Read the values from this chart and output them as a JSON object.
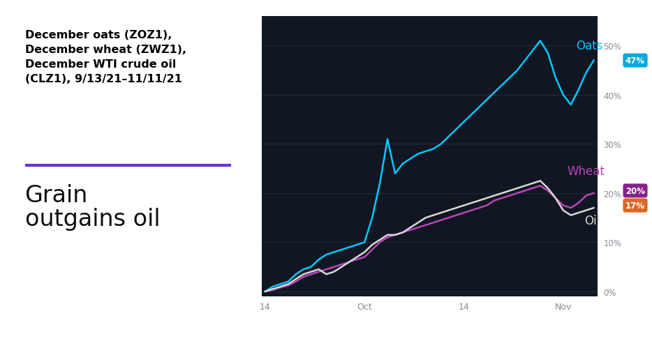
{
  "chart_bg": "#111722",
  "left_panel_bg": "#ffffff",
  "title_text": "December oats (ZOZ1),\nDecember wheat (ZWZ1),\nDecember WTI crude oil\n(CLZ1), 9/13/21–11/11/21",
  "subtitle_text": "Grain\noutgains oil",
  "purple_line_color": "#6633cc",
  "title_fontsize": 11.5,
  "subtitle_fontsize": 24,
  "oats_color": "#00c8ff",
  "wheat_color": "#bb44bb",
  "oil_color": "#d8d8d8",
  "oats_label": "Oats",
  "wheat_label": "Wheat",
  "oil_label": "Oil",
  "oats_pct": "47%",
  "wheat_pct": "20%",
  "oil_pct": "17%",
  "oats_badge_color": "#00aadd",
  "wheat_badge_color": "#882288",
  "oil_badge_color": "#dd6622",
  "ytick_labels": [
    "0%",
    "10%",
    "20%",
    "30%",
    "40%",
    "50%"
  ],
  "ytick_values": [
    0,
    10,
    20,
    30,
    40,
    50
  ],
  "xtick_labels": [
    "14",
    "Oct",
    "14",
    "Nov"
  ],
  "xtick_positions": [
    0,
    13,
    26,
    39
  ],
  "n_points": 44,
  "oats_data": [
    0.0,
    1.0,
    1.5,
    2.0,
    3.5,
    4.5,
    5.0,
    6.5,
    7.5,
    8.0,
    8.5,
    9.0,
    9.5,
    10.0,
    15.0,
    22.0,
    31.0,
    24.0,
    26.0,
    27.0,
    28.0,
    28.5,
    29.0,
    30.0,
    31.5,
    33.0,
    34.5,
    36.0,
    37.5,
    39.0,
    40.5,
    42.0,
    43.5,
    45.0,
    47.0,
    49.0,
    51.0,
    48.5,
    43.5,
    40.0,
    38.0,
    41.0,
    44.5,
    47.0
  ],
  "wheat_data": [
    0.0,
    0.3,
    0.8,
    1.2,
    2.0,
    3.0,
    3.5,
    4.0,
    4.5,
    5.0,
    5.5,
    6.0,
    6.5,
    7.0,
    8.5,
    10.0,
    11.0,
    11.5,
    12.0,
    12.5,
    13.0,
    13.5,
    14.0,
    14.5,
    15.0,
    15.5,
    16.0,
    16.5,
    17.0,
    17.5,
    18.5,
    19.0,
    19.5,
    20.0,
    20.5,
    21.0,
    21.5,
    20.5,
    19.0,
    17.5,
    17.0,
    18.0,
    19.5,
    20.0
  ],
  "oil_data": [
    0.0,
    0.5,
    1.0,
    1.5,
    2.5,
    3.5,
    4.0,
    4.5,
    3.5,
    4.0,
    5.0,
    6.0,
    7.0,
    8.0,
    9.5,
    10.5,
    11.5,
    11.5,
    12.0,
    13.0,
    14.0,
    15.0,
    15.5,
    16.0,
    16.5,
    17.0,
    17.5,
    18.0,
    18.5,
    19.0,
    19.5,
    20.0,
    20.5,
    21.0,
    21.5,
    22.0,
    22.5,
    21.0,
    19.0,
    16.5,
    15.5,
    16.0,
    16.5,
    17.0
  ]
}
